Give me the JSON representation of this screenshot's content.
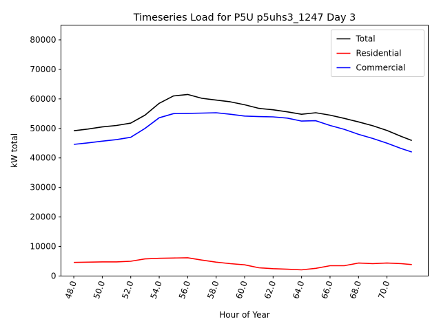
{
  "chart_data": {
    "type": "line",
    "title": "Timeseries Load for P5U p5uhs3_1247  Day 3",
    "xlabel": "Hour of Year",
    "ylabel": "kW total",
    "xlim": [
      47.1,
      72.9
    ],
    "ylim": [
      0,
      85000
    ],
    "xticks": [
      48,
      50,
      52,
      54,
      56,
      58,
      60,
      62,
      64,
      66,
      68,
      70
    ],
    "xtick_labels": [
      "48.0",
      "50.0",
      "52.0",
      "54.0",
      "56.0",
      "58.0",
      "60.0",
      "62.0",
      "64.0",
      "66.0",
      "68.0",
      "70.0"
    ],
    "yticks": [
      0,
      10000,
      20000,
      30000,
      40000,
      50000,
      60000,
      70000,
      80000
    ],
    "ytick_labels": [
      "0",
      "10000",
      "20000",
      "30000",
      "40000",
      "50000",
      "60000",
      "70000",
      "80000"
    ],
    "legend_position": "top-right",
    "x": [
      48,
      49,
      50,
      51,
      52,
      53,
      54,
      55,
      56,
      57,
      58,
      59,
      60,
      61,
      62,
      63,
      64,
      65,
      66,
      67,
      68,
      69,
      70,
      71,
      71.75
    ],
    "series": [
      {
        "name": "Total",
        "color": "#000000",
        "values": [
          49200,
          49800,
          50500,
          51000,
          51800,
          54500,
          58500,
          61000,
          61500,
          60200,
          59600,
          59000,
          58000,
          56800,
          56300,
          55600,
          54800,
          55300,
          54500,
          53400,
          52200,
          50900,
          49300,
          47300,
          45900
        ]
      },
      {
        "name": "Residential",
        "color": "#ff0000",
        "values": [
          4600,
          4700,
          4800,
          4800,
          5000,
          5800,
          6000,
          6100,
          6200,
          5400,
          4700,
          4200,
          3800,
          2800,
          2500,
          2300,
          2100,
          2600,
          3500,
          3500,
          4400,
          4200,
          4400,
          4200,
          3900
        ]
      },
      {
        "name": "Commercial",
        "color": "#0000ff",
        "values": [
          44600,
          45100,
          45700,
          46200,
          47000,
          50000,
          53600,
          55000,
          55100,
          55200,
          55300,
          54800,
          54200,
          54000,
          53900,
          53500,
          52500,
          52600,
          51000,
          49700,
          48000,
          46600,
          45000,
          43200,
          42000
        ]
      }
    ]
  }
}
